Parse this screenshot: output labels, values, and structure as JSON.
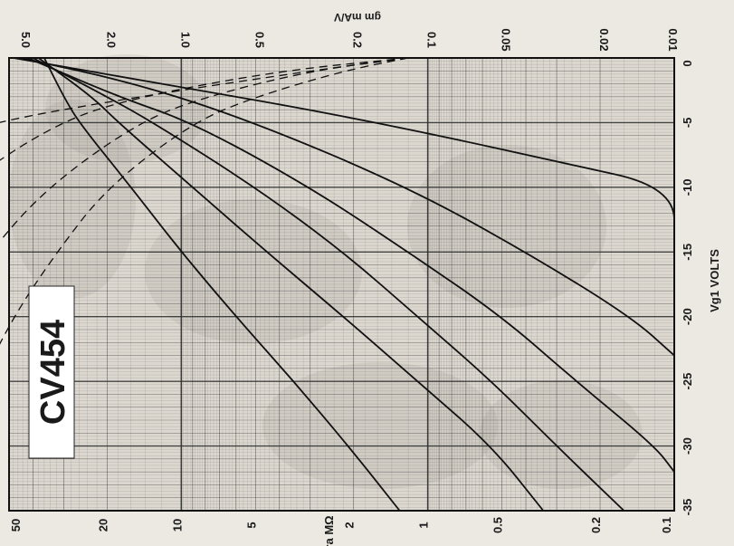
{
  "chart_data": {
    "type": "line",
    "title": "CV454",
    "orientation": "rotated-90",
    "xlabel": "Vg1 VOLTS",
    "x_ticks": [
      "0",
      "-5",
      "-10",
      "-15",
      "-20",
      "-25",
      "-30",
      "-35"
    ],
    "xlim": [
      0,
      -35
    ],
    "y_left_label": "ra MΩ",
    "y_left_ticks": [
      "50",
      "20",
      "10",
      "5",
      "2",
      "1",
      "0.5",
      "0.2",
      "0.1"
    ],
    "y_left_scale": "log",
    "y_right_label": "gm mA/V",
    "y_right_ticks": [
      "5.0",
      "2.0",
      "1.0",
      "0.5",
      "0.2",
      "0.1",
      "0.05",
      "0.02",
      "0.01"
    ],
    "y_right_scale": "log",
    "grid": true,
    "series": [
      {
        "x": [
          0,
          -2,
          -4,
          -6,
          -8,
          -10,
          -15
        ],
        "values": [
          4.8,
          1.2,
          0.3,
          0.09,
          0.03,
          0.01,
          0.01
        ]
      },
      {
        "x": [
          0,
          -2,
          -5,
          -10,
          -15,
          -20,
          -23
        ],
        "values": [
          4.5,
          1.5,
          0.5,
          0.12,
          0.04,
          0.015,
          0.01
        ]
      },
      {
        "x": [
          0,
          -3,
          -5,
          -10,
          -15,
          -20,
          -25,
          -30,
          -32
        ],
        "values": [
          4.2,
          1.8,
          0.9,
          0.3,
          0.12,
          0.05,
          0.025,
          0.012,
          0.01
        ]
      },
      {
        "x": [
          0,
          -3,
          -5,
          -10,
          -15,
          -20,
          -25,
          -30,
          -35
        ],
        "values": [
          4.0,
          2.0,
          1.3,
          0.5,
          0.22,
          0.11,
          0.055,
          0.03,
          0.016
        ]
      },
      {
        "x": [
          0,
          -3,
          -5,
          -10,
          -15,
          -20,
          -25,
          -30,
          -35
        ],
        "values": [
          3.8,
          2.3,
          1.8,
          0.9,
          0.45,
          0.22,
          0.11,
          0.055,
          0.034
        ]
      },
      {
        "x": [
          0,
          -3,
          -5,
          -10,
          -15,
          -20,
          -25,
          -30,
          -35
        ],
        "values": [
          3.6,
          3.0,
          2.6,
          1.6,
          1.0,
          0.6,
          0.35,
          0.21,
          0.13
        ]
      },
      {
        "x": [
          0,
          -1,
          -3,
          -5,
          -8
        ],
        "values": [
          0.12,
          0.3,
          1.5,
          6.0,
          20.0
        ],
        "dashed": true
      },
      {
        "x": [
          0,
          -1,
          -3,
          -5,
          -10,
          -15,
          -20,
          -25,
          -30
        ],
        "values": [
          0.12,
          0.4,
          1.5,
          3.2,
          8.0,
          15.0,
          25.0,
          40.0,
          50.0
        ],
        "dashed": true
      },
      {
        "x": [
          0,
          -1,
          -3,
          -5,
          -10,
          -15,
          -20,
          -25,
          -30
        ],
        "values": [
          0.12,
          0.3,
          0.8,
          1.5,
          3.5,
          6.0,
          9.0,
          13.0,
          18.0
        ],
        "dashed": true
      },
      {
        "x": [
          0,
          -1,
          -3,
          -5,
          -10,
          -15,
          -20,
          -25,
          -30
        ],
        "values": [
          0.12,
          0.22,
          0.5,
          0.9,
          2.0,
          3.2,
          4.8,
          6.5,
          8.5
        ],
        "dashed": true
      }
    ]
  }
}
